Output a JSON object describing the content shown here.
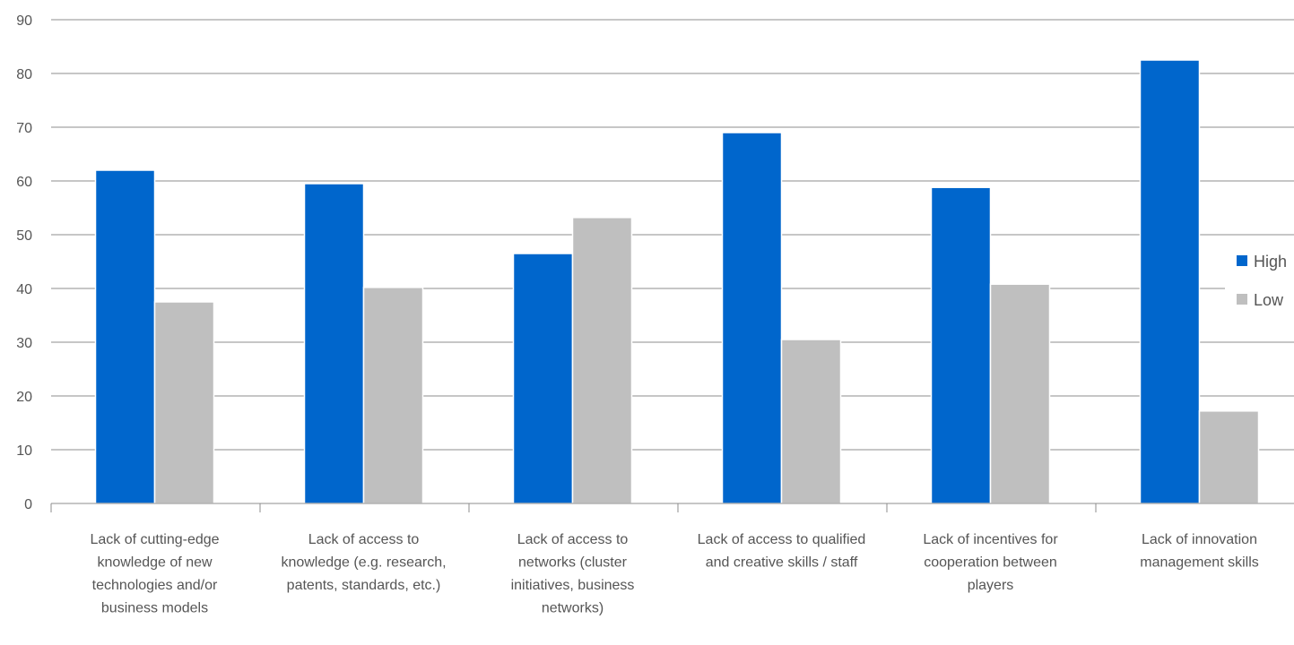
{
  "chart_data": {
    "type": "bar",
    "title": "",
    "xlabel": "",
    "ylabel": "",
    "ylim": [
      0,
      90
    ],
    "yticks": [
      0,
      10,
      20,
      30,
      40,
      50,
      60,
      70,
      80,
      90
    ],
    "grid": true,
    "legend_position": "right",
    "categories": [
      [
        "Lack of cutting-edge",
        "knowledge of new",
        "technologies and/or",
        "business models"
      ],
      [
        "Lack of access to",
        "knowledge (e.g. research,",
        "patents, standards, etc.)"
      ],
      [
        "Lack of access to",
        "networks (cluster",
        "initiatives, business",
        "networks)"
      ],
      [
        "Lack of access to qualified",
        "and creative skills / staff"
      ],
      [
        "Lack of incentives for",
        "cooperation between",
        "players"
      ],
      [
        "Lack of innovation",
        "management skills"
      ]
    ],
    "series": [
      {
        "name": "High",
        "color": "#0066CC",
        "values": [
          62,
          59.5,
          46.5,
          69,
          58.8,
          82.5
        ]
      },
      {
        "name": "Low",
        "color": "#BFBFBF",
        "values": [
          37.5,
          40.2,
          53.2,
          30.5,
          40.8,
          17.2
        ]
      }
    ]
  }
}
